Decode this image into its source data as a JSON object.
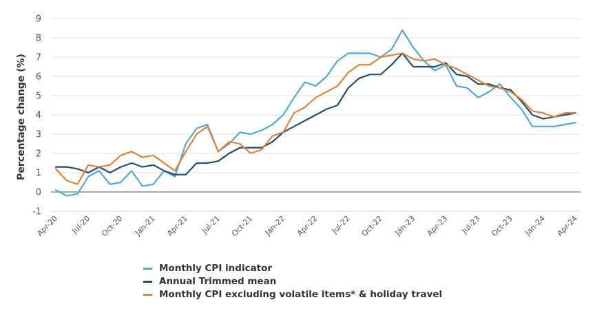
{
  "chart_data": {
    "type": "line",
    "title": "",
    "xlabel": "",
    "ylabel": "Percentage change (%)",
    "ylim": [
      -1,
      9
    ],
    "yticks": [
      "-1",
      "0",
      "1",
      "2",
      "3",
      "4",
      "5",
      "6",
      "7",
      "8",
      "9"
    ],
    "grid": true,
    "legend_position": "bottom",
    "x": [
      "Apr-20",
      "May-20",
      "Jun-20",
      "Jul-20",
      "Aug-20",
      "Sep-20",
      "Oct-20",
      "Nov-20",
      "Dec-20",
      "Jan-21",
      "Feb-21",
      "Mar-21",
      "Apr-21",
      "May-21",
      "Jun-21",
      "Jul-21",
      "Aug-21",
      "Sep-21",
      "Oct-21",
      "Nov-21",
      "Dec-21",
      "Jan-22",
      "Feb-22",
      "Mar-22",
      "Apr-22",
      "May-22",
      "Jun-22",
      "Jul-22",
      "Aug-22",
      "Sep-22",
      "Oct-22",
      "Nov-22",
      "Dec-22",
      "Jan-23",
      "Feb-23",
      "Mar-23",
      "Apr-23",
      "May-23",
      "Jun-23",
      "Jul-23",
      "Aug-23",
      "Sep-23",
      "Oct-23",
      "Nov-23",
      "Dec-23",
      "Jan-24",
      "Feb-24",
      "Mar-24",
      "Apr-24"
    ],
    "xtick_labels": [
      "Apr-20",
      "Jul-20",
      "Oct-20",
      "Jan-21",
      "Apr-21",
      "Jul-21",
      "Oct-21",
      "Jan-22",
      "Apr-22",
      "Jul-22",
      "Oct-22",
      "Jan-23",
      "Apr-23",
      "Jul-23",
      "Oct-23",
      "Jan-24",
      "Apr-24"
    ],
    "series": [
      {
        "name": "Monthly CPI indicator",
        "color": "#4ea8d8",
        "values": [
          0.1,
          -0.2,
          -0.1,
          0.8,
          1.1,
          0.4,
          0.5,
          1.1,
          0.3,
          0.4,
          1.1,
          0.8,
          2.5,
          3.3,
          3.5,
          2.1,
          2.5,
          3.1,
          3.0,
          3.2,
          3.5,
          4.0,
          4.9,
          5.7,
          5.5,
          6.0,
          6.8,
          7.2,
          7.2,
          7.2,
          7.0,
          7.4,
          8.4,
          7.5,
          6.8,
          6.3,
          6.6,
          5.5,
          5.4,
          4.9,
          5.2,
          5.6,
          4.9,
          4.3,
          3.4,
          3.4,
          3.4,
          3.5,
          3.6
        ]
      },
      {
        "name": "Annual Trimmed mean",
        "color": "#1f4e70",
        "values": [
          1.3,
          1.3,
          1.2,
          1.0,
          1.3,
          1.0,
          1.3,
          1.5,
          1.3,
          1.4,
          1.1,
          0.9,
          0.9,
          1.5,
          1.5,
          1.6,
          2.0,
          2.3,
          2.3,
          2.3,
          2.6,
          3.1,
          3.4,
          3.7,
          4.0,
          4.3,
          4.5,
          5.4,
          5.9,
          6.1,
          6.1,
          6.6,
          7.2,
          6.5,
          6.5,
          6.5,
          6.7,
          6.1,
          6.0,
          5.6,
          5.6,
          5.4,
          5.3,
          4.7,
          4.0,
          3.8,
          3.9,
          4.0,
          4.1
        ]
      },
      {
        "name": "Monthly CPI excluding volatile items* & holiday travel",
        "color": "#e0833a",
        "values": [
          1.2,
          0.6,
          0.4,
          1.4,
          1.3,
          1.4,
          1.9,
          2.1,
          1.8,
          1.9,
          1.5,
          1.1,
          2.1,
          3.0,
          3.4,
          2.1,
          2.6,
          2.5,
          2.0,
          2.2,
          2.9,
          3.1,
          4.1,
          4.4,
          4.9,
          5.2,
          5.5,
          6.2,
          6.6,
          6.6,
          7.0,
          7.1,
          7.2,
          6.9,
          6.8,
          6.9,
          6.6,
          6.4,
          6.1,
          5.8,
          5.5,
          5.4,
          5.2,
          4.8,
          4.2,
          4.1,
          3.9,
          4.1,
          4.1
        ]
      }
    ]
  }
}
